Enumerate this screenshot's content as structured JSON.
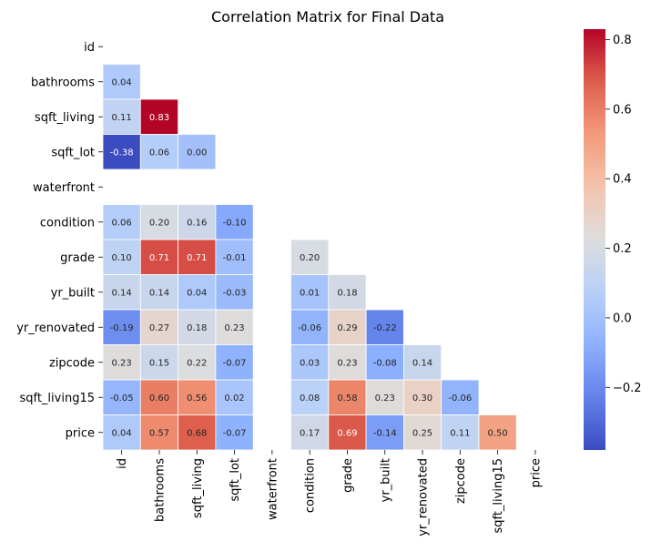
{
  "chart_data": {
    "type": "heatmap",
    "title": "Correlation Matrix for Final Data",
    "labels": [
      "id",
      "bathrooms",
      "sqft_living",
      "sqft_lot",
      "waterfront",
      "condition",
      "grade",
      "yr_built",
      "yr_renovated",
      "zipcode",
      "sqft_living15",
      "price"
    ],
    "mask": "upper-triangle-and-diagonal",
    "values": [
      [
        null,
        null,
        null,
        null,
        null,
        null,
        null,
        null,
        null,
        null,
        null,
        null
      ],
      [
        0.04,
        null,
        null,
        null,
        null,
        null,
        null,
        null,
        null,
        null,
        null,
        null
      ],
      [
        0.11,
        0.83,
        null,
        null,
        null,
        null,
        null,
        null,
        null,
        null,
        null,
        null
      ],
      [
        -0.38,
        0.06,
        0.0,
        null,
        null,
        null,
        null,
        null,
        null,
        null,
        null,
        null
      ],
      [
        null,
        null,
        null,
        null,
        null,
        null,
        null,
        null,
        null,
        null,
        null,
        null
      ],
      [
        0.06,
        0.2,
        0.16,
        -0.1,
        null,
        null,
        null,
        null,
        null,
        null,
        null,
        null
      ],
      [
        0.1,
        0.71,
        0.71,
        -0.01,
        null,
        0.2,
        null,
        null,
        null,
        null,
        null,
        null
      ],
      [
        0.14,
        0.14,
        0.04,
        -0.03,
        null,
        0.01,
        0.18,
        null,
        null,
        null,
        null,
        null
      ],
      [
        -0.19,
        0.27,
        0.18,
        0.23,
        null,
        -0.06,
        0.29,
        -0.22,
        null,
        null,
        null,
        null
      ],
      [
        0.23,
        0.15,
        0.22,
        -0.07,
        null,
        0.03,
        0.23,
        -0.08,
        0.14,
        null,
        null,
        null
      ],
      [
        -0.05,
        0.6,
        0.56,
        0.02,
        null,
        0.08,
        0.58,
        0.23,
        0.3,
        -0.06,
        null,
        null
      ],
      [
        0.04,
        0.57,
        0.68,
        -0.07,
        null,
        0.17,
        0.69,
        -0.14,
        0.25,
        0.11,
        0.5,
        null
      ]
    ],
    "colormap": "coolwarm",
    "colorbar": {
      "range": [
        -0.38,
        0.83
      ],
      "ticks": [
        -0.2,
        0.0,
        0.2,
        0.4,
        0.6,
        0.8
      ],
      "tick_labels": [
        "−0.2",
        "0.0",
        "0.2",
        "0.4",
        "0.6",
        "0.8"
      ]
    },
    "annotation_format": "0.00",
    "grid": false,
    "legend": "colorbar-right"
  }
}
